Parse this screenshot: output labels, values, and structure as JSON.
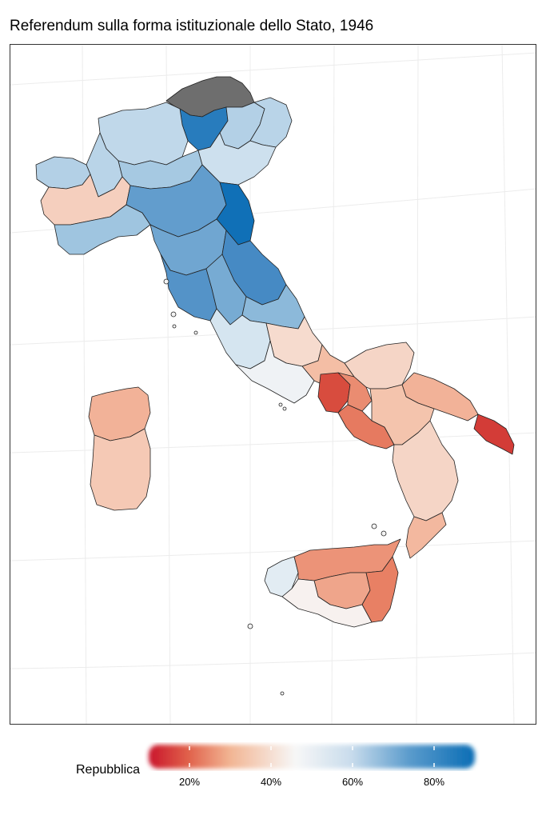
{
  "title": "Referendum sulla forma istituzionale dello Stato, 1946",
  "legend": {
    "title": "Repubblica",
    "ticks": [
      "20%",
      "40%",
      "60%",
      "80%"
    ],
    "tick_values": [
      0.2,
      0.4,
      0.6,
      0.8
    ],
    "range": [
      0.1,
      0.9
    ],
    "colors": {
      "low": "#c9142b",
      "mid": "#f7f7f7",
      "high": "#0a6db5",
      "missing": "#6e6e6e"
    }
  },
  "map_data": {
    "variable": "Repubblica",
    "units": "percent of votes",
    "areas": [
      {
        "id": "alto-adige",
        "value": null
      },
      {
        "id": "trentino",
        "value": 0.85
      },
      {
        "id": "lombardia-nord",
        "value": 0.62
      },
      {
        "id": "veneto-nord",
        "value": 0.64
      },
      {
        "id": "friuli",
        "value": 0.63
      },
      {
        "id": "piemonte-nord",
        "value": 0.63
      },
      {
        "id": "valle-aosta",
        "value": 0.64
      },
      {
        "id": "lombardia-sud",
        "value": 0.66
      },
      {
        "id": "veneto-sud",
        "value": 0.6
      },
      {
        "id": "piemonte-sud",
        "value": 0.43
      },
      {
        "id": "liguria",
        "value": 0.67
      },
      {
        "id": "emilia",
        "value": 0.76
      },
      {
        "id": "romagna",
        "value": 0.89
      },
      {
        "id": "toscana-nord",
        "value": 0.74
      },
      {
        "id": "marche-nord",
        "value": 0.8
      },
      {
        "id": "toscana-sud",
        "value": 0.78
      },
      {
        "id": "umbria",
        "value": 0.73
      },
      {
        "id": "marche-sud",
        "value": 0.7
      },
      {
        "id": "lazio-nord",
        "value": 0.58
      },
      {
        "id": "abruzzo",
        "value": 0.45
      },
      {
        "id": "molise",
        "value": 0.4
      },
      {
        "id": "lazio-sud",
        "value": 0.52
      },
      {
        "id": "campania-napoli",
        "value": 0.21
      },
      {
        "id": "campania-interno",
        "value": 0.32
      },
      {
        "id": "salerno",
        "value": 0.29
      },
      {
        "id": "puglia-nord",
        "value": 0.44
      },
      {
        "id": "puglia-centro",
        "value": 0.38
      },
      {
        "id": "lecce",
        "value": 0.18
      },
      {
        "id": "basilicata",
        "value": 0.41
      },
      {
        "id": "calabria-nord",
        "value": 0.44
      },
      {
        "id": "calabria-sud",
        "value": 0.39
      },
      {
        "id": "sicilia-ovest",
        "value": 0.55
      },
      {
        "id": "sicilia-nord",
        "value": 0.33
      },
      {
        "id": "sicilia-interno",
        "value": 0.36
      },
      {
        "id": "sicilia-est",
        "value": 0.3
      },
      {
        "id": "sicilia-sud",
        "value": 0.49
      },
      {
        "id": "sardegna-nord",
        "value": 0.38
      },
      {
        "id": "sardegna-sud",
        "value": 0.42
      }
    ]
  }
}
